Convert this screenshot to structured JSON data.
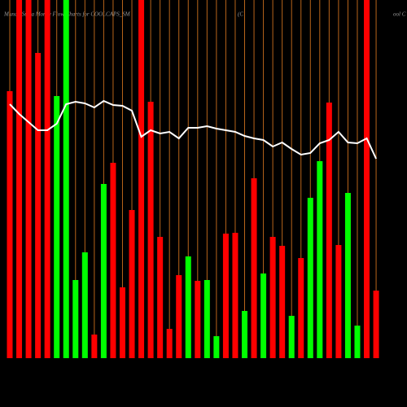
{
  "chart_data": {
    "type": "bar",
    "title": "MunafaSutra  Money Flow  Charts for COOLCAPS_SM",
    "title_fragments": [
      "(C",
      "ool C"
    ],
    "values": [
      328,
      440,
      440,
      375,
      440,
      322,
      440,
      96,
      130,
      29,
      214,
      240,
      87,
      182,
      440,
      315,
      149,
      36,
      102,
      125,
      95,
      96,
      27,
      153,
      154,
      58,
      221,
      104,
      149,
      138,
      52,
      123,
      197,
      242,
      314,
      139,
      203,
      40,
      440,
      83
    ],
    "bar_colors": [
      "#ff0000",
      "#ff0000",
      "#ff0000",
      "#ff0000",
      "#ff0000",
      "#00ff00",
      "#00ff00",
      "#00ff00",
      "#00ff00",
      "#ff0000",
      "#00ff00",
      "#ff0000",
      "#ff0000",
      "#ff0000",
      "#ff0000",
      "#ff0000",
      "#ff0000",
      "#ff0000",
      "#ff0000",
      "#00ff00",
      "#ff0000",
      "#00ff00",
      "#00ff00",
      "#ff0000",
      "#ff0000",
      "#00ff00",
      "#ff0000",
      "#00ff00",
      "#ff0000",
      "#ff0000",
      "#00ff00",
      "#ff0000",
      "#00ff00",
      "#00ff00",
      "#ff0000",
      "#ff0000",
      "#00ff00",
      "#00ff00",
      "#ff0000",
      "#ff0000"
    ],
    "line_values": [
      312,
      300,
      290,
      280,
      280,
      288,
      312,
      315,
      313,
      308,
      316,
      311,
      310,
      304,
      272,
      280,
      276,
      278,
      270,
      283,
      283,
      285,
      282,
      280,
      278,
      273,
      270,
      268,
      260,
      265,
      257,
      250,
      252,
      264,
      268,
      278,
      265,
      264,
      270,
      245
    ],
    "line_color": "#ffffff",
    "grid_color": "#b8651a",
    "ylim": [
      0,
      440
    ],
    "grid": true
  }
}
